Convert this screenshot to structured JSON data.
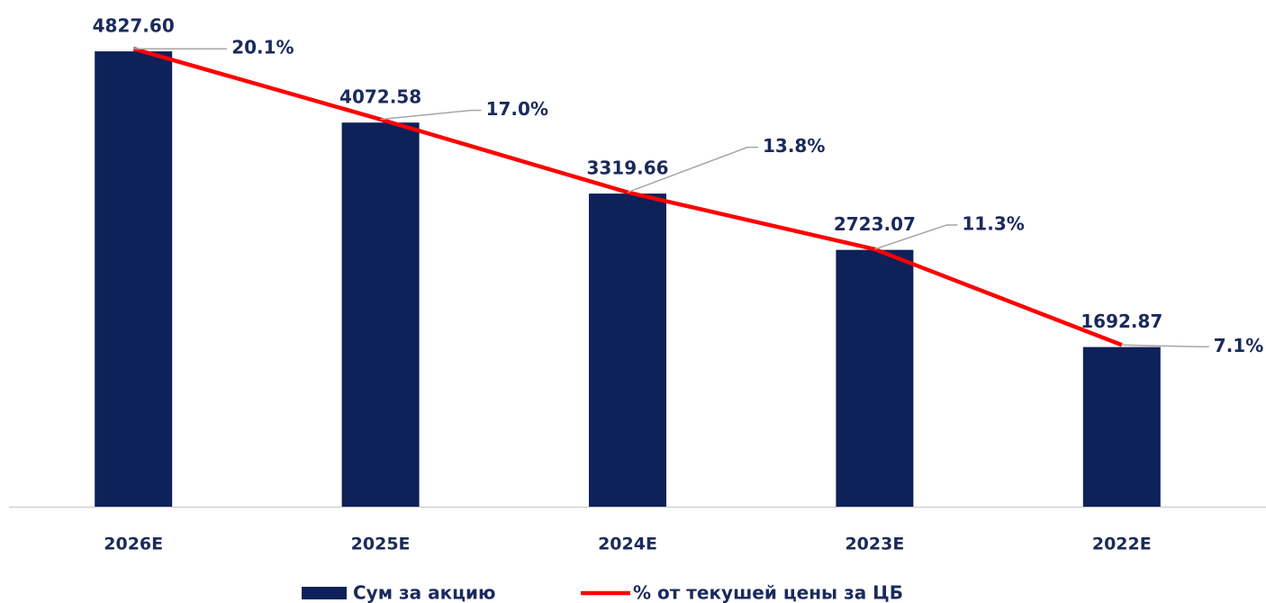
{
  "chart_data": {
    "type": "bar",
    "categories": [
      "2026E",
      "2025E",
      "2024E",
      "2023E",
      "2022E"
    ],
    "series": [
      {
        "name": "Сум за акцию",
        "type": "bar",
        "color": "#0e2159",
        "values": [
          4827.6,
          4072.58,
          3319.66,
          2723.07,
          1692.87
        ],
        "value_labels": [
          "4827.60",
          "4072.58",
          "3319.66",
          "2723.07",
          "1692.87"
        ]
      },
      {
        "name": "% от текушей цены за ЦБ",
        "type": "line",
        "axis": "y2",
        "color": "#ff0000",
        "values": [
          20.1,
          17.0,
          13.8,
          11.3,
          7.1
        ],
        "value_labels": [
          "20.1%",
          "17.0%",
          "13.8%",
          "11.3%",
          "7.1%"
        ]
      }
    ],
    "ylim": [
      0,
      5000
    ],
    "y2lim": [
      0,
      20.7
    ],
    "legend": "bottom"
  }
}
